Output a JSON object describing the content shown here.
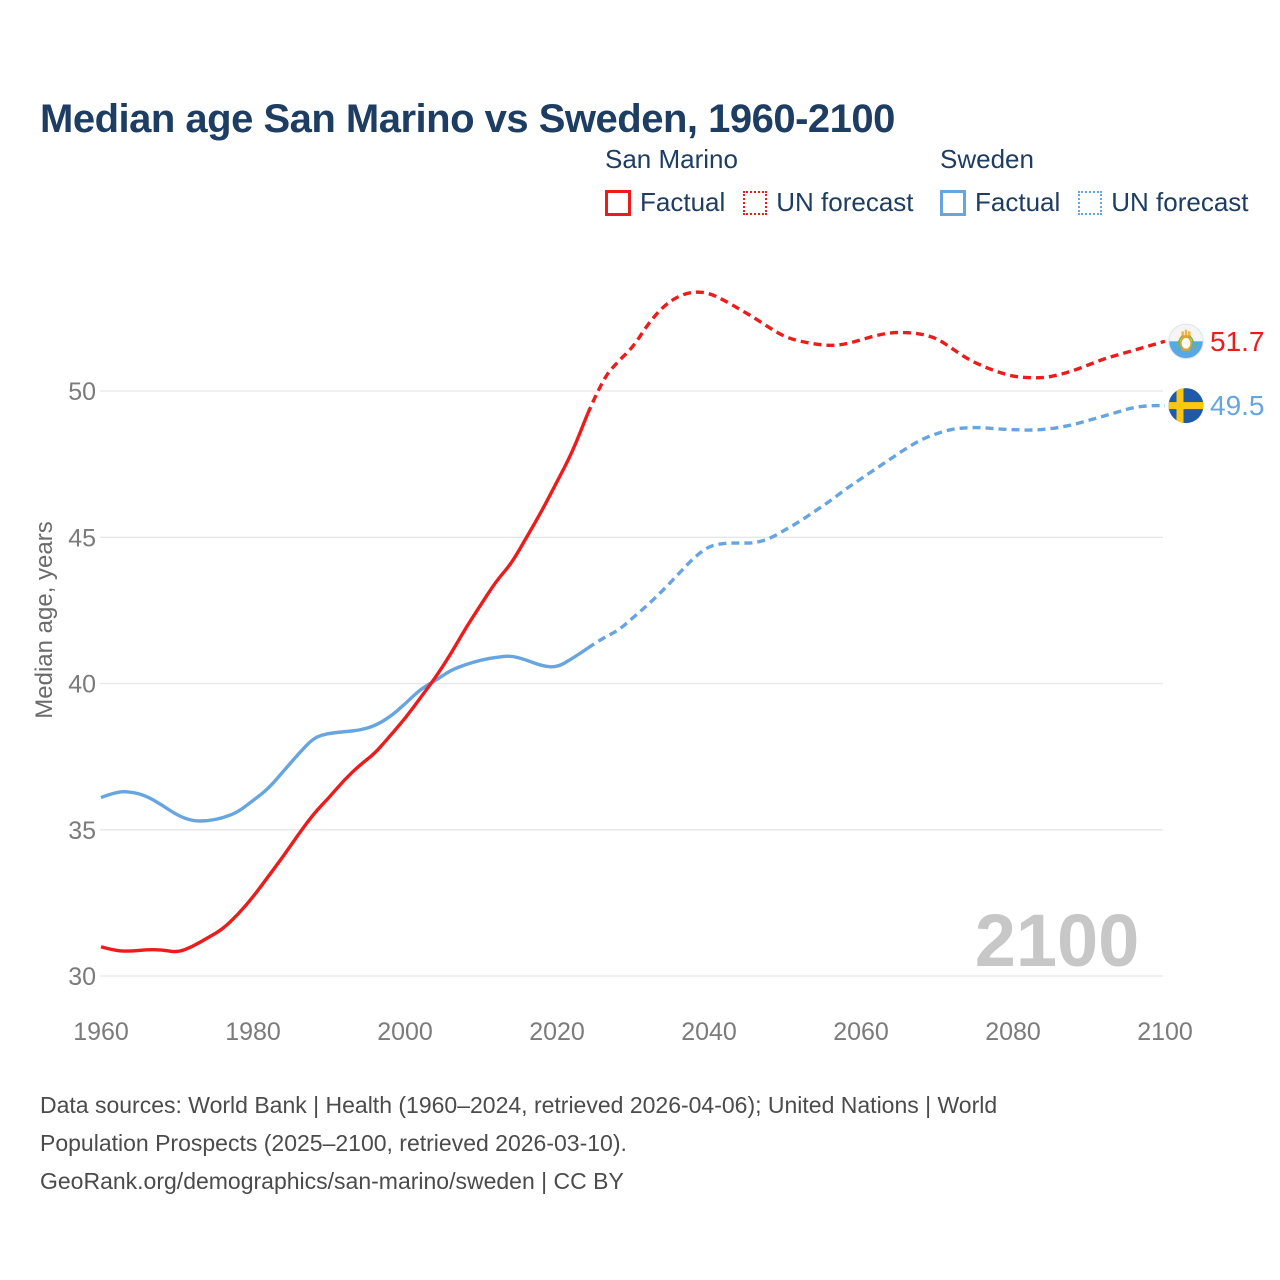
{
  "title": "Median age San Marino vs Sweden, 1960-2100",
  "legend": {
    "groups": [
      {
        "name": "San Marino",
        "items": [
          {
            "label": "Factual",
            "style": "solid",
            "color": "#ed1c1c"
          },
          {
            "label": "UN forecast",
            "style": "dotted",
            "color": "#ed1c1c"
          }
        ]
      },
      {
        "name": "Sweden",
        "items": [
          {
            "label": "Factual",
            "style": "solid",
            "color": "#67a5e1"
          },
          {
            "label": "UN forecast",
            "style": "dotted",
            "color": "#67a5e1"
          }
        ]
      }
    ]
  },
  "chart_data": {
    "type": "line",
    "title": "Median age San Marino vs Sweden, 1960-2100",
    "xlabel": "",
    "ylabel": "Median age, years",
    "watermark": "2100",
    "x_ticks": [
      1960,
      1980,
      2000,
      2020,
      2040,
      2060,
      2080,
      2100
    ],
    "y_ticks": [
      30,
      35,
      40,
      45,
      50
    ],
    "xlim": [
      1960,
      2100
    ],
    "ylim": [
      29.8,
      53.8
    ],
    "grid": "horizontal",
    "legend_position": "top-right",
    "series": [
      {
        "name": "Sweden — Factual",
        "color": "#67a5e1",
        "dashed": false,
        "points": [
          [
            1960,
            36.1
          ],
          [
            1962,
            36.3
          ],
          [
            1964,
            36.3
          ],
          [
            1966,
            36.15
          ],
          [
            1968,
            35.85
          ],
          [
            1970,
            35.5
          ],
          [
            1972,
            35.3
          ],
          [
            1974,
            35.3
          ],
          [
            1976,
            35.4
          ],
          [
            1978,
            35.6
          ],
          [
            1980,
            36.0
          ],
          [
            1982,
            36.4
          ],
          [
            1984,
            37.0
          ],
          [
            1986,
            37.6
          ],
          [
            1988,
            38.15
          ],
          [
            1990,
            38.3
          ],
          [
            1992,
            38.35
          ],
          [
            1994,
            38.4
          ],
          [
            1996,
            38.55
          ],
          [
            1998,
            38.85
          ],
          [
            2000,
            39.3
          ],
          [
            2002,
            39.8
          ],
          [
            2004,
            40.1
          ],
          [
            2006,
            40.45
          ],
          [
            2008,
            40.65
          ],
          [
            2010,
            40.8
          ],
          [
            2012,
            40.9
          ],
          [
            2014,
            40.95
          ],
          [
            2016,
            40.8
          ],
          [
            2018,
            40.6
          ],
          [
            2020,
            40.55
          ],
          [
            2022,
            40.85
          ],
          [
            2024,
            41.2
          ]
        ]
      },
      {
        "name": "Sweden — UN forecast",
        "color": "#67a5e1",
        "dashed": true,
        "points": [
          [
            2024,
            41.2
          ],
          [
            2026,
            41.55
          ],
          [
            2028,
            41.8
          ],
          [
            2030,
            42.25
          ],
          [
            2032,
            42.7
          ],
          [
            2034,
            43.2
          ],
          [
            2036,
            43.75
          ],
          [
            2038,
            44.3
          ],
          [
            2040,
            44.7
          ],
          [
            2042,
            44.8
          ],
          [
            2044,
            44.8
          ],
          [
            2046,
            44.8
          ],
          [
            2048,
            44.95
          ],
          [
            2050,
            45.25
          ],
          [
            2052,
            45.55
          ],
          [
            2054,
            45.9
          ],
          [
            2056,
            46.25
          ],
          [
            2058,
            46.65
          ],
          [
            2060,
            47.0
          ],
          [
            2062,
            47.35
          ],
          [
            2064,
            47.7
          ],
          [
            2066,
            48.05
          ],
          [
            2068,
            48.35
          ],
          [
            2070,
            48.55
          ],
          [
            2072,
            48.7
          ],
          [
            2074,
            48.75
          ],
          [
            2076,
            48.75
          ],
          [
            2078,
            48.7
          ],
          [
            2080,
            48.68
          ],
          [
            2082,
            48.66
          ],
          [
            2084,
            48.68
          ],
          [
            2086,
            48.75
          ],
          [
            2088,
            48.85
          ],
          [
            2090,
            49.0
          ],
          [
            2092,
            49.15
          ],
          [
            2094,
            49.3
          ],
          [
            2096,
            49.45
          ],
          [
            2098,
            49.5
          ],
          [
            2100,
            49.5
          ]
        ]
      },
      {
        "name": "San Marino — Factual",
        "color": "#ed1c1c",
        "dashed": false,
        "points": [
          [
            1960,
            31.0
          ],
          [
            1962,
            30.85
          ],
          [
            1964,
            30.85
          ],
          [
            1966,
            30.9
          ],
          [
            1968,
            30.9
          ],
          [
            1970,
            30.8
          ],
          [
            1972,
            31.0
          ],
          [
            1974,
            31.3
          ],
          [
            1976,
            31.6
          ],
          [
            1978,
            32.1
          ],
          [
            1980,
            32.7
          ],
          [
            1982,
            33.4
          ],
          [
            1984,
            34.1
          ],
          [
            1986,
            34.85
          ],
          [
            1988,
            35.55
          ],
          [
            1990,
            36.1
          ],
          [
            1992,
            36.7
          ],
          [
            1994,
            37.2
          ],
          [
            1996,
            37.6
          ],
          [
            1998,
            38.2
          ],
          [
            2000,
            38.8
          ],
          [
            2002,
            39.5
          ],
          [
            2004,
            40.2
          ],
          [
            2006,
            41.0
          ],
          [
            2008,
            41.9
          ],
          [
            2010,
            42.7
          ],
          [
            2012,
            43.5
          ],
          [
            2014,
            44.1
          ],
          [
            2016,
            45.0
          ],
          [
            2018,
            45.9
          ],
          [
            2020,
            46.9
          ],
          [
            2022,
            47.9
          ],
          [
            2024,
            49.2
          ]
        ]
      },
      {
        "name": "San Marino — UN forecast",
        "color": "#ed1c1c",
        "dashed": true,
        "points": [
          [
            2024,
            49.2
          ],
          [
            2026,
            50.4
          ],
          [
            2028,
            51.0
          ],
          [
            2030,
            51.5
          ],
          [
            2032,
            52.3
          ],
          [
            2034,
            52.9
          ],
          [
            2036,
            53.25
          ],
          [
            2038,
            53.4
          ],
          [
            2040,
            53.35
          ],
          [
            2042,
            53.1
          ],
          [
            2044,
            52.8
          ],
          [
            2046,
            52.5
          ],
          [
            2048,
            52.15
          ],
          [
            2050,
            51.85
          ],
          [
            2052,
            51.7
          ],
          [
            2054,
            51.6
          ],
          [
            2056,
            51.55
          ],
          [
            2058,
            51.6
          ],
          [
            2060,
            51.75
          ],
          [
            2062,
            51.9
          ],
          [
            2064,
            52.0
          ],
          [
            2066,
            52.0
          ],
          [
            2068,
            51.95
          ],
          [
            2070,
            51.8
          ],
          [
            2072,
            51.45
          ],
          [
            2074,
            51.1
          ],
          [
            2076,
            50.85
          ],
          [
            2078,
            50.65
          ],
          [
            2080,
            50.5
          ],
          [
            2082,
            50.45
          ],
          [
            2084,
            50.45
          ],
          [
            2086,
            50.55
          ],
          [
            2088,
            50.7
          ],
          [
            2090,
            50.9
          ],
          [
            2092,
            51.1
          ],
          [
            2094,
            51.25
          ],
          [
            2096,
            51.4
          ],
          [
            2098,
            51.55
          ],
          [
            2100,
            51.7
          ]
        ]
      }
    ],
    "end_labels": [
      {
        "series": "San Marino",
        "value": "51.7",
        "color": "#ed1c1c",
        "flag": "flag-sm"
      },
      {
        "series": "Sweden",
        "value": "49.5",
        "color": "#67a5e1",
        "flag": "flag-sw"
      }
    ]
  },
  "footer": {
    "lines": [
      "Data sources: World Bank | Health (1960–2024, retrieved 2026-04-06); United Nations | World",
      "Population Prospects (2025–2100, retrieved 2026-03-10).",
      "GeoRank.org/demographics/san-marino/sweden | CC BY"
    ]
  },
  "colors": {
    "san_marino": "#ed1c1c",
    "sweden": "#67a5e1",
    "title_text": "#1d3d63",
    "axis_text": "#7b7b7b",
    "gridline": "#e7e7e7",
    "watermark": "#c7c7c7",
    "footer_text": "#4b4b4b"
  }
}
